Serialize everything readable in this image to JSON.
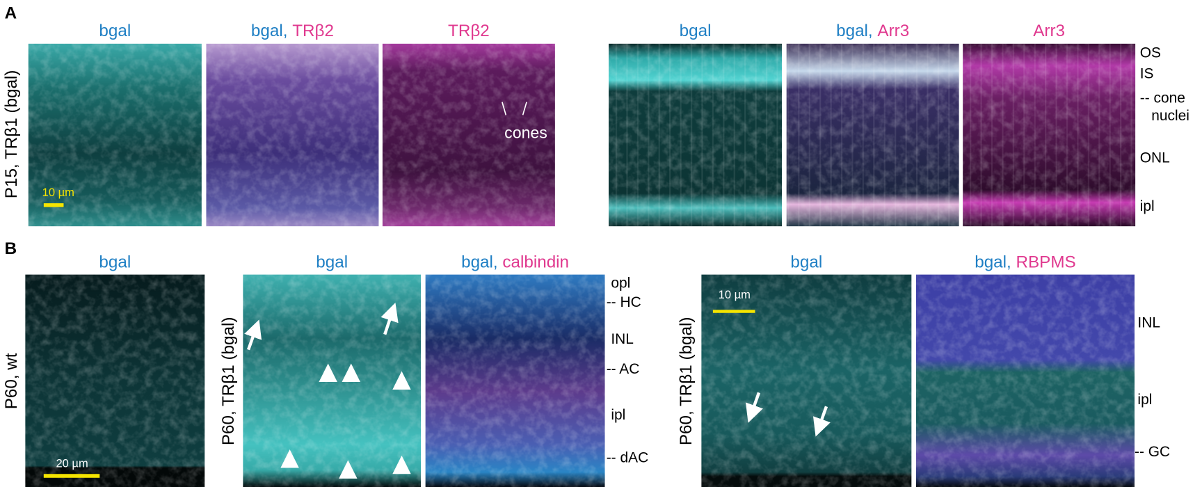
{
  "panel_a": {
    "letter": "A",
    "side_label": "P15, TRβ1 (bgal)",
    "scale_bar": "10 µm",
    "annotation": "cones",
    "titles": [
      [
        {
          "text": "bgal",
          "color": "#1f7fc4"
        }
      ],
      [
        {
          "text": "bgal, ",
          "color": "#1f7fc4"
        },
        {
          "text": "TRβ2",
          "color": "#e0398f"
        }
      ],
      [
        {
          "text": "TRβ2",
          "color": "#e0398f"
        }
      ],
      [
        {
          "text": "bgal",
          "color": "#1f7fc4"
        }
      ],
      [
        {
          "text": "bgal, ",
          "color": "#1f7fc4"
        },
        {
          "text": "Arr3",
          "color": "#e0398f"
        }
      ],
      [
        {
          "text": "Arr3",
          "color": "#e0398f"
        }
      ]
    ],
    "layers": [
      "OS",
      "IS",
      "-- cone",
      "nuclei",
      "ONL",
      "ipl"
    ]
  },
  "panel_b": {
    "letter": "B",
    "side_labels": [
      "P60, wt",
      "P60, TRβ1 (bgal)",
      "P60, TRβ1 (bgal)"
    ],
    "scale_bars": [
      "20 µm",
      "10 µm"
    ],
    "titles": [
      [
        {
          "text": "bgal",
          "color": "#1f7fc4"
        }
      ],
      [
        {
          "text": "bgal",
          "color": "#1f7fc4"
        }
      ],
      [
        {
          "text": "bgal, ",
          "color": "#1f7fc4"
        },
        {
          "text": "calbindin",
          "color": "#e0398f"
        }
      ],
      [
        {
          "text": "bgal",
          "color": "#1f7fc4"
        }
      ],
      [
        {
          "text": "bgal, ",
          "color": "#1f7fc4"
        },
        {
          "text": "RBPMS",
          "color": "#e0398f"
        }
      ]
    ],
    "layers_middle": [
      "opl",
      "-- HC",
      "INL",
      "-- AC",
      "ipl",
      "-- dAC"
    ],
    "layers_right": [
      "INL",
      "ipl",
      "-- GC"
    ]
  }
}
